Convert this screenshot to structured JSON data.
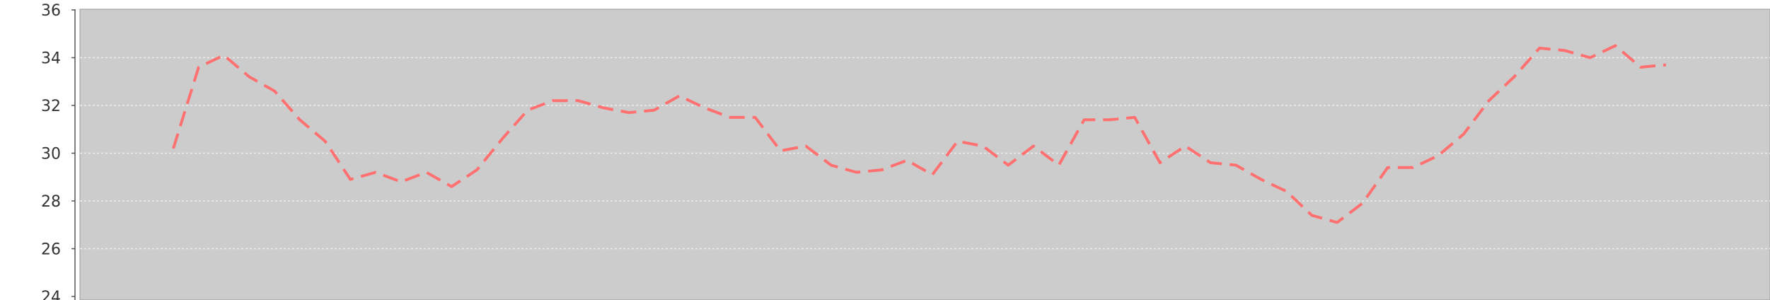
{
  "chart_data": {
    "type": "line",
    "title": "",
    "xlabel": "",
    "ylabel": "",
    "ylim": [
      24,
      36
    ],
    "yticks": [
      24,
      26,
      28,
      30,
      32,
      34,
      36
    ],
    "grid": true,
    "legend": "none",
    "background_color": "#cccccc",
    "grid_color": "#eeeeee",
    "series": [
      {
        "line_style": "dashed",
        "color": "#ff7070",
        "values": [
          30.2,
          33.6,
          34.1,
          33.2,
          32.6,
          31.4,
          30.5,
          28.9,
          29.2,
          28.8,
          29.2,
          28.6,
          29.3,
          30.6,
          31.8,
          32.2,
          32.2,
          31.9,
          31.7,
          31.8,
          32.4,
          31.9,
          31.5,
          31.5,
          30.1,
          30.3,
          29.5,
          29.2,
          29.3,
          29.7,
          29.1,
          30.5,
          30.3,
          29.5,
          30.3,
          29.5,
          31.4,
          31.4,
          31.5,
          29.6,
          30.3,
          29.6,
          29.5,
          28.9,
          28.4,
          27.4,
          27.1,
          27.9,
          29.4,
          29.4,
          29.9,
          30.8,
          32.2,
          33.2,
          34.4,
          34.3,
          34.0,
          34.5,
          33.6,
          33.7
        ]
      }
    ]
  }
}
